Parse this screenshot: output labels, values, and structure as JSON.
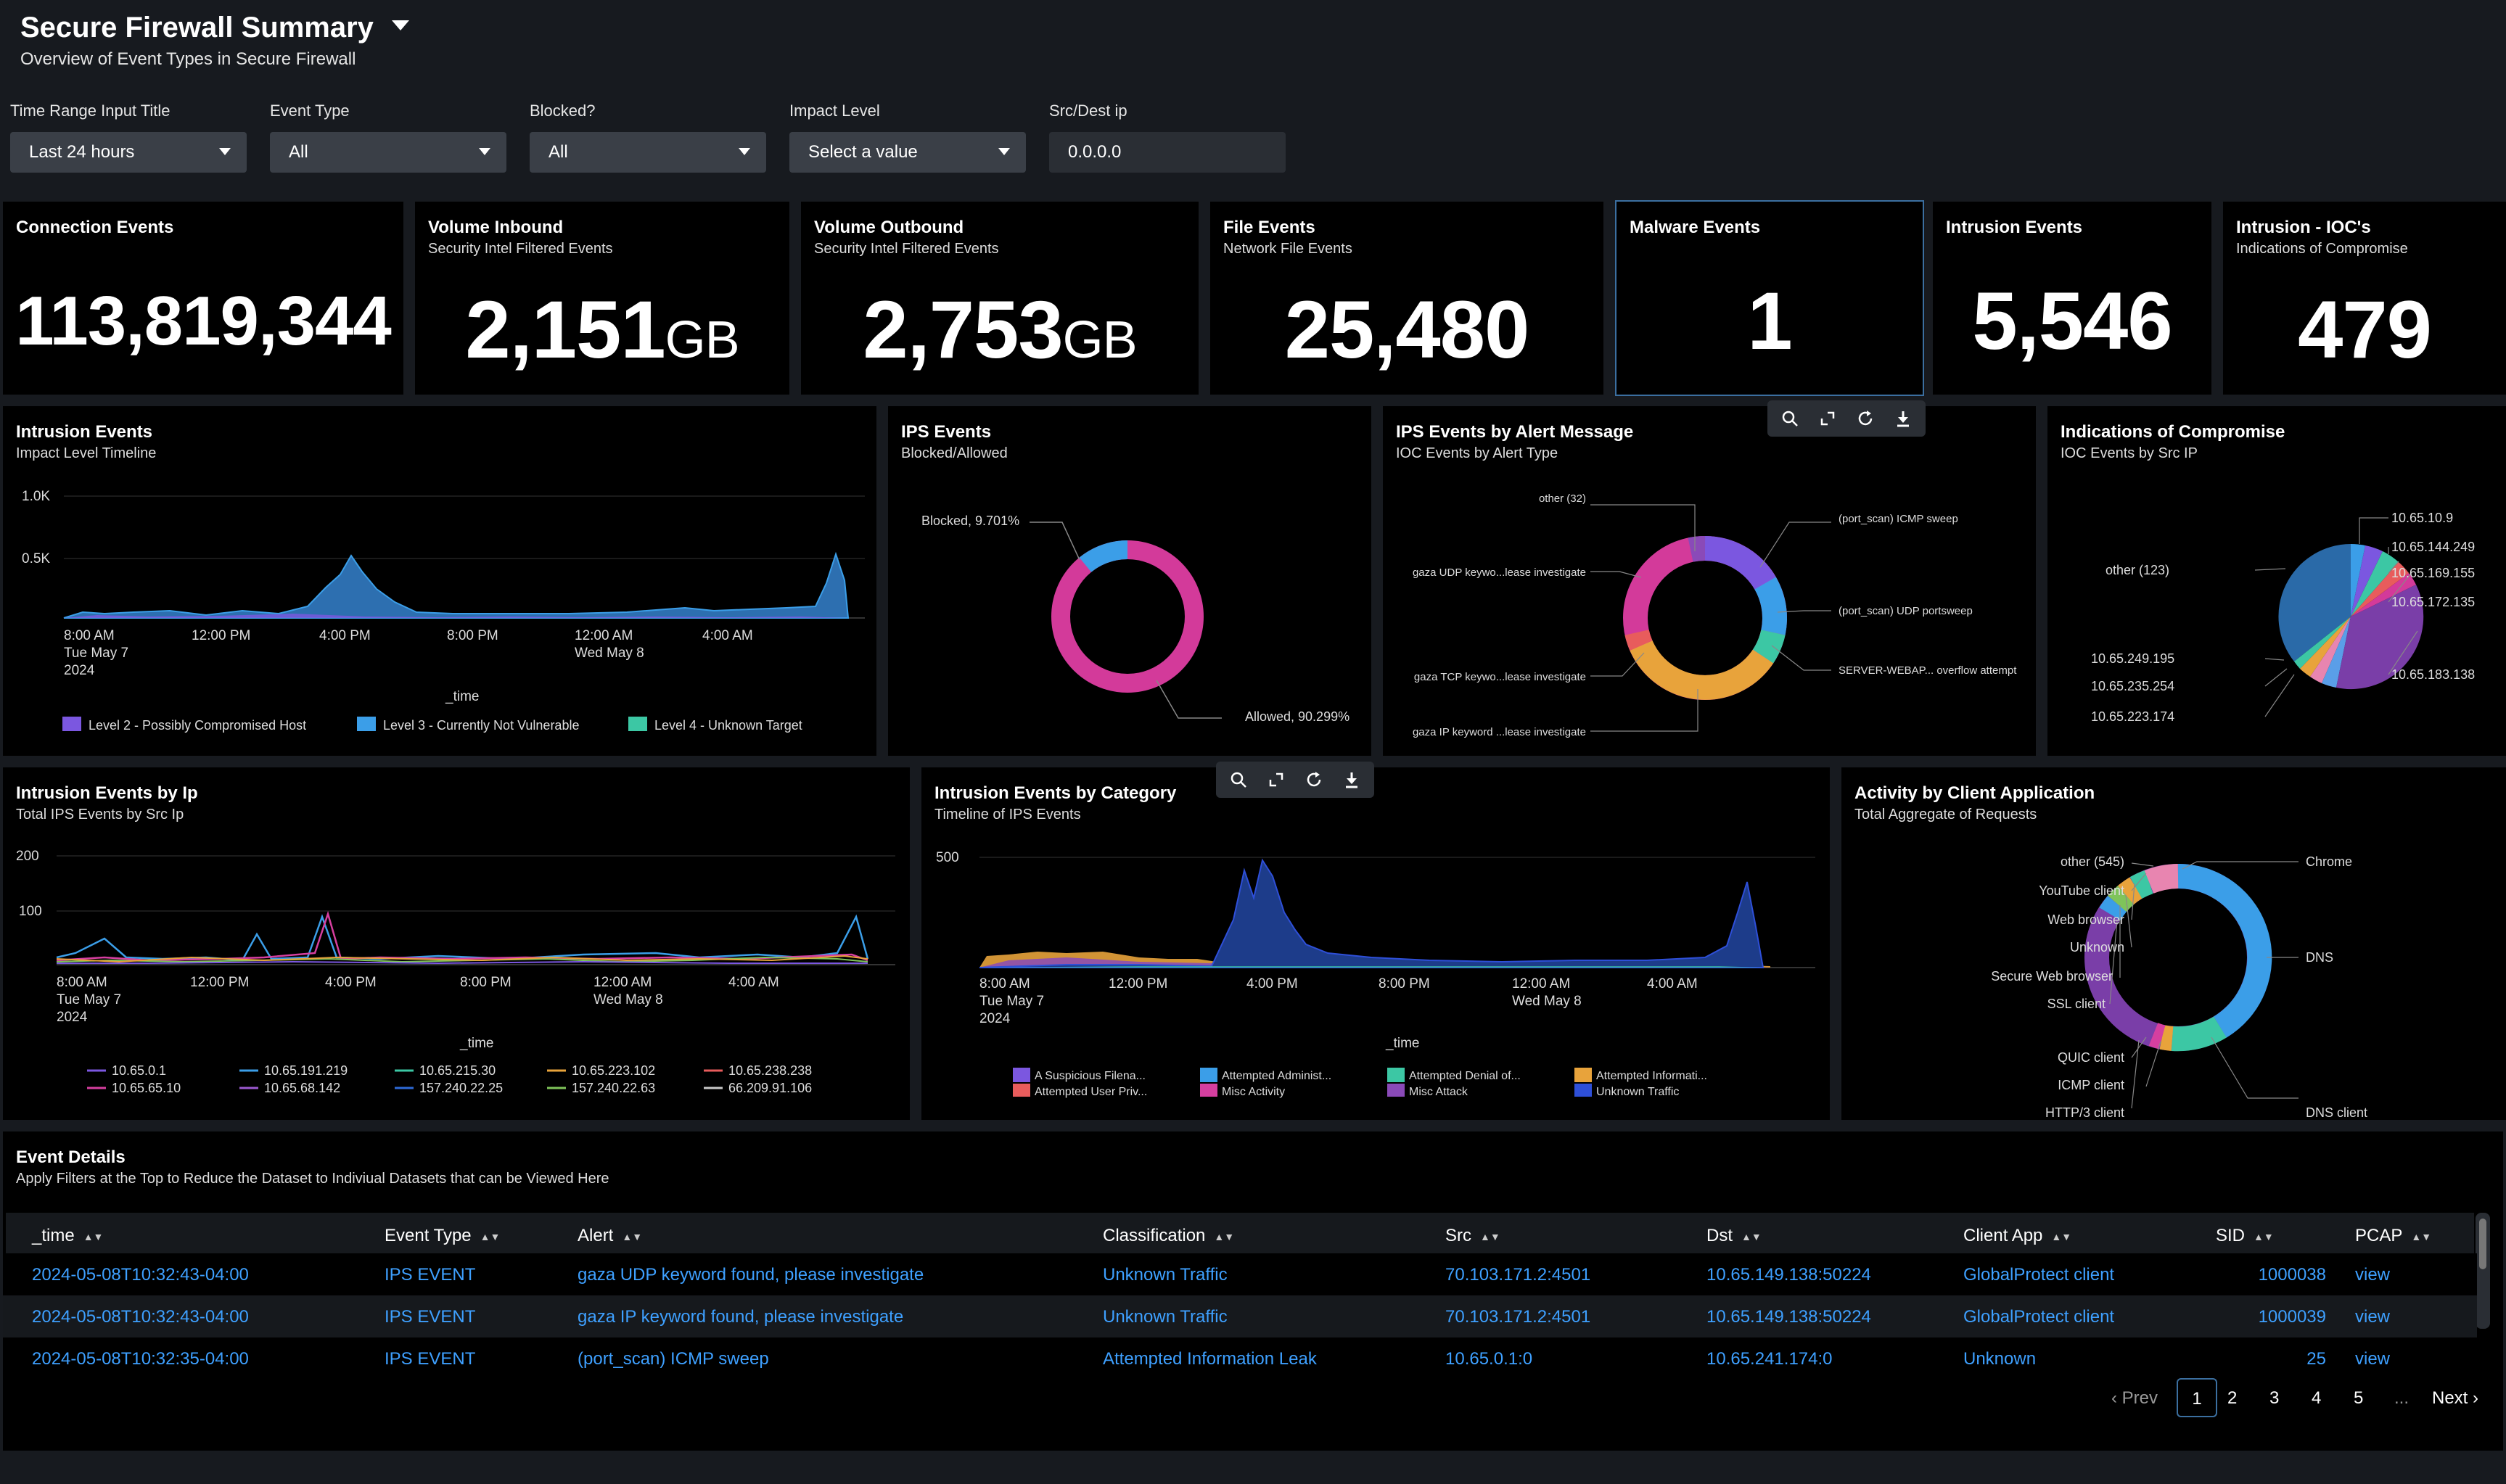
{
  "header": {
    "title": "Secure Firewall Summary",
    "subtitle": "Overview of Event Types in Secure Firewall"
  },
  "filters": [
    {
      "label": "Time Range Input Title",
      "value": "Last 24 hours"
    },
    {
      "label": "Event Type",
      "value": "All"
    },
    {
      "label": "Blocked?",
      "value": "All"
    },
    {
      "label": "Impact Level",
      "value": "Select a value"
    },
    {
      "label": "Src/Dest ip",
      "value": "0.0.0.0"
    }
  ],
  "kpis": [
    {
      "title": "Connection Events",
      "subtitle": "",
      "value": "113,819,344",
      "unit": ""
    },
    {
      "title": "Volume Inbound",
      "subtitle": "Security Intel Filtered Events",
      "value": "2,151",
      "unit": "GB"
    },
    {
      "title": "Volume Outbound",
      "subtitle": "Security Intel Filtered Events",
      "value": "2,753",
      "unit": "GB"
    },
    {
      "title": "File Events",
      "subtitle": "Network File Events",
      "value": "25,480",
      "unit": ""
    },
    {
      "title": "Malware Events",
      "subtitle": "",
      "value": "1",
      "unit": ""
    },
    {
      "title": "Intrusion Events",
      "subtitle": "",
      "value": "5,546",
      "unit": ""
    },
    {
      "title": "Intrusion - IOC's",
      "subtitle": "Indications of Compromise",
      "value": "479",
      "unit": ""
    }
  ],
  "panels": {
    "intrusion_timeline": {
      "title": "Intrusion Events",
      "subtitle": "Impact Level Timeline",
      "y_ticks": [
        "1.0K",
        "0.5K"
      ],
      "x_ticks": [
        "8:00 AM",
        "12:00 PM",
        "4:00 PM",
        "8:00 PM",
        "12:00 AM",
        "4:00 AM"
      ],
      "date_1": "Tue May 7",
      "year": "2024",
      "date_2": "Wed May 8",
      "xlabel": "_time",
      "legend": [
        {
          "label": "Level 2 - Possibly Compromised Host",
          "color": "#7b57e0"
        },
        {
          "label": "Level 3 - Currently Not Vulnerable",
          "color": "#3b9ee8"
        },
        {
          "label": "Level 4 - Unknown Target",
          "color": "#3cc7a4"
        }
      ]
    },
    "ips_events": {
      "title": "IPS Events",
      "subtitle": "Blocked/Allowed",
      "labels": [
        "Blocked, 9.701%",
        "Allowed, 90.299%"
      ]
    },
    "ips_alert": {
      "title": "IPS Events by Alert Message",
      "subtitle": "IOC Events by Alert Type",
      "labels_left": [
        "other (32)",
        "gaza UDP keywo...lease investigate",
        "gaza TCP keywo...lease investigate",
        "gaza IP keyword ...lease investigate"
      ],
      "labels_right": [
        "(port_scan) ICMP sweep",
        "(port_scan) UDP portsweep",
        "SERVER-WEBAP... overflow attempt"
      ]
    },
    "ioc": {
      "title": "Indications of Compromise",
      "subtitle": "IOC Events by Src IP",
      "labels_right": [
        "10.65.10.9",
        "10.65.144.249",
        "10.65.169.155",
        "10.65.172.135",
        "10.65.183.138"
      ],
      "labels_left": [
        "other (123)",
        "10.65.249.195",
        "10.65.235.254",
        "10.65.223.174"
      ]
    },
    "intrusion_ip": {
      "title": "Intrusion Events by Ip",
      "subtitle": "Total IPS Events by Src Ip",
      "y_ticks": [
        "200",
        "100"
      ],
      "x_ticks": [
        "8:00 AM",
        "12:00 PM",
        "4:00 PM",
        "8:00 PM",
        "12:00 AM",
        "4:00 AM"
      ],
      "date_1": "Tue May 7",
      "year": "2024",
      "date_2": "Wed May 8",
      "xlabel": "_time",
      "legend": [
        {
          "label": "10.65.0.1",
          "color": "#7b57e0"
        },
        {
          "label": "10.65.191.219",
          "color": "#3b9ee8"
        },
        {
          "label": "10.65.215.30",
          "color": "#3cc7a4"
        },
        {
          "label": "10.65.223.102",
          "color": "#e8a33b"
        },
        {
          "label": "10.65.238.238",
          "color": "#e85c5c"
        },
        {
          "label": "10.65.65.10",
          "color": "#d63fa0"
        },
        {
          "label": "10.65.68.142",
          "color": "#9b59d0"
        },
        {
          "label": "157.240.22.25",
          "color": "#2e6ad8"
        },
        {
          "label": "157.240.22.63",
          "color": "#7fc45a"
        },
        {
          "label": "66.209.91.106",
          "color": "#c9c9c9"
        }
      ]
    },
    "intrusion_category": {
      "title": "Intrusion Events by Category",
      "subtitle": "Timeline of IPS Events",
      "y_ticks": [
        "500"
      ],
      "x_ticks": [
        "8:00 AM",
        "12:00 PM",
        "4:00 PM",
        "8:00 PM",
        "12:00 AM",
        "4:00 AM"
      ],
      "date_1": "Tue May 7",
      "year": "2024",
      "date_2": "Wed May 8",
      "xlabel": "_time",
      "legend": [
        {
          "label": "A Suspicious Filena...",
          "color": "#7b57e0"
        },
        {
          "label": "Attempted User Priv...",
          "color": "#e85c5c"
        },
        {
          "label": "Attempted Administ...",
          "color": "#3b9ee8"
        },
        {
          "label": "Misc Activity",
          "color": "#d63fa0"
        },
        {
          "label": "Attempted Denial of...",
          "color": "#3cc7a4"
        },
        {
          "label": "Misc Attack",
          "color": "#8a4ab8"
        },
        {
          "label": "Attempted Informati...",
          "color": "#e8a33b"
        },
        {
          "label": "Unknown Traffic",
          "color": "#2e4fd8"
        }
      ]
    },
    "client_app": {
      "title": "Activity by Client Application",
      "subtitle": "Total Aggregate of Requests",
      "labels_left": [
        "other (545)",
        "YouTube client",
        "Web browser",
        "Unknown",
        "Secure Web browser",
        "SSL client",
        "QUIC client",
        "ICMP client",
        "HTTP/3 client"
      ],
      "labels_right": [
        "Chrome",
        "DNS",
        "DNS client"
      ]
    }
  },
  "table": {
    "title": "Event Details",
    "subtitle": "Apply Filters at the Top to Reduce the Dataset to Indiviual Datasets that can be Viewed Here",
    "columns": [
      "_time",
      "Event Type",
      "Alert",
      "Classification",
      "Src",
      "Dst",
      "Client App",
      "SID",
      "PCAP"
    ],
    "rows": [
      [
        "2024-05-08T10:32:43-04:00",
        "IPS EVENT",
        "gaza UDP keyword found, please investigate",
        "Unknown Traffic",
        "70.103.171.2:4501",
        "10.65.149.138:50224",
        "GlobalProtect client",
        "1000038",
        "view"
      ],
      [
        "2024-05-08T10:32:43-04:00",
        "IPS EVENT",
        "gaza IP keyword found, please investigate",
        "Unknown Traffic",
        "70.103.171.2:4501",
        "10.65.149.138:50224",
        "GlobalProtect client",
        "1000039",
        "view"
      ],
      [
        "2024-05-08T10:32:35-04:00",
        "IPS EVENT",
        "(port_scan) ICMP sweep",
        "Attempted Information Leak",
        "10.65.0.1:0",
        "10.65.241.174:0",
        "Unknown",
        "25",
        "view"
      ]
    ],
    "pagination": {
      "prev": "Prev",
      "pages": [
        "1",
        "2",
        "3",
        "4",
        "5"
      ],
      "ellipsis": "...",
      "next": "Next",
      "current": "1"
    }
  }
}
